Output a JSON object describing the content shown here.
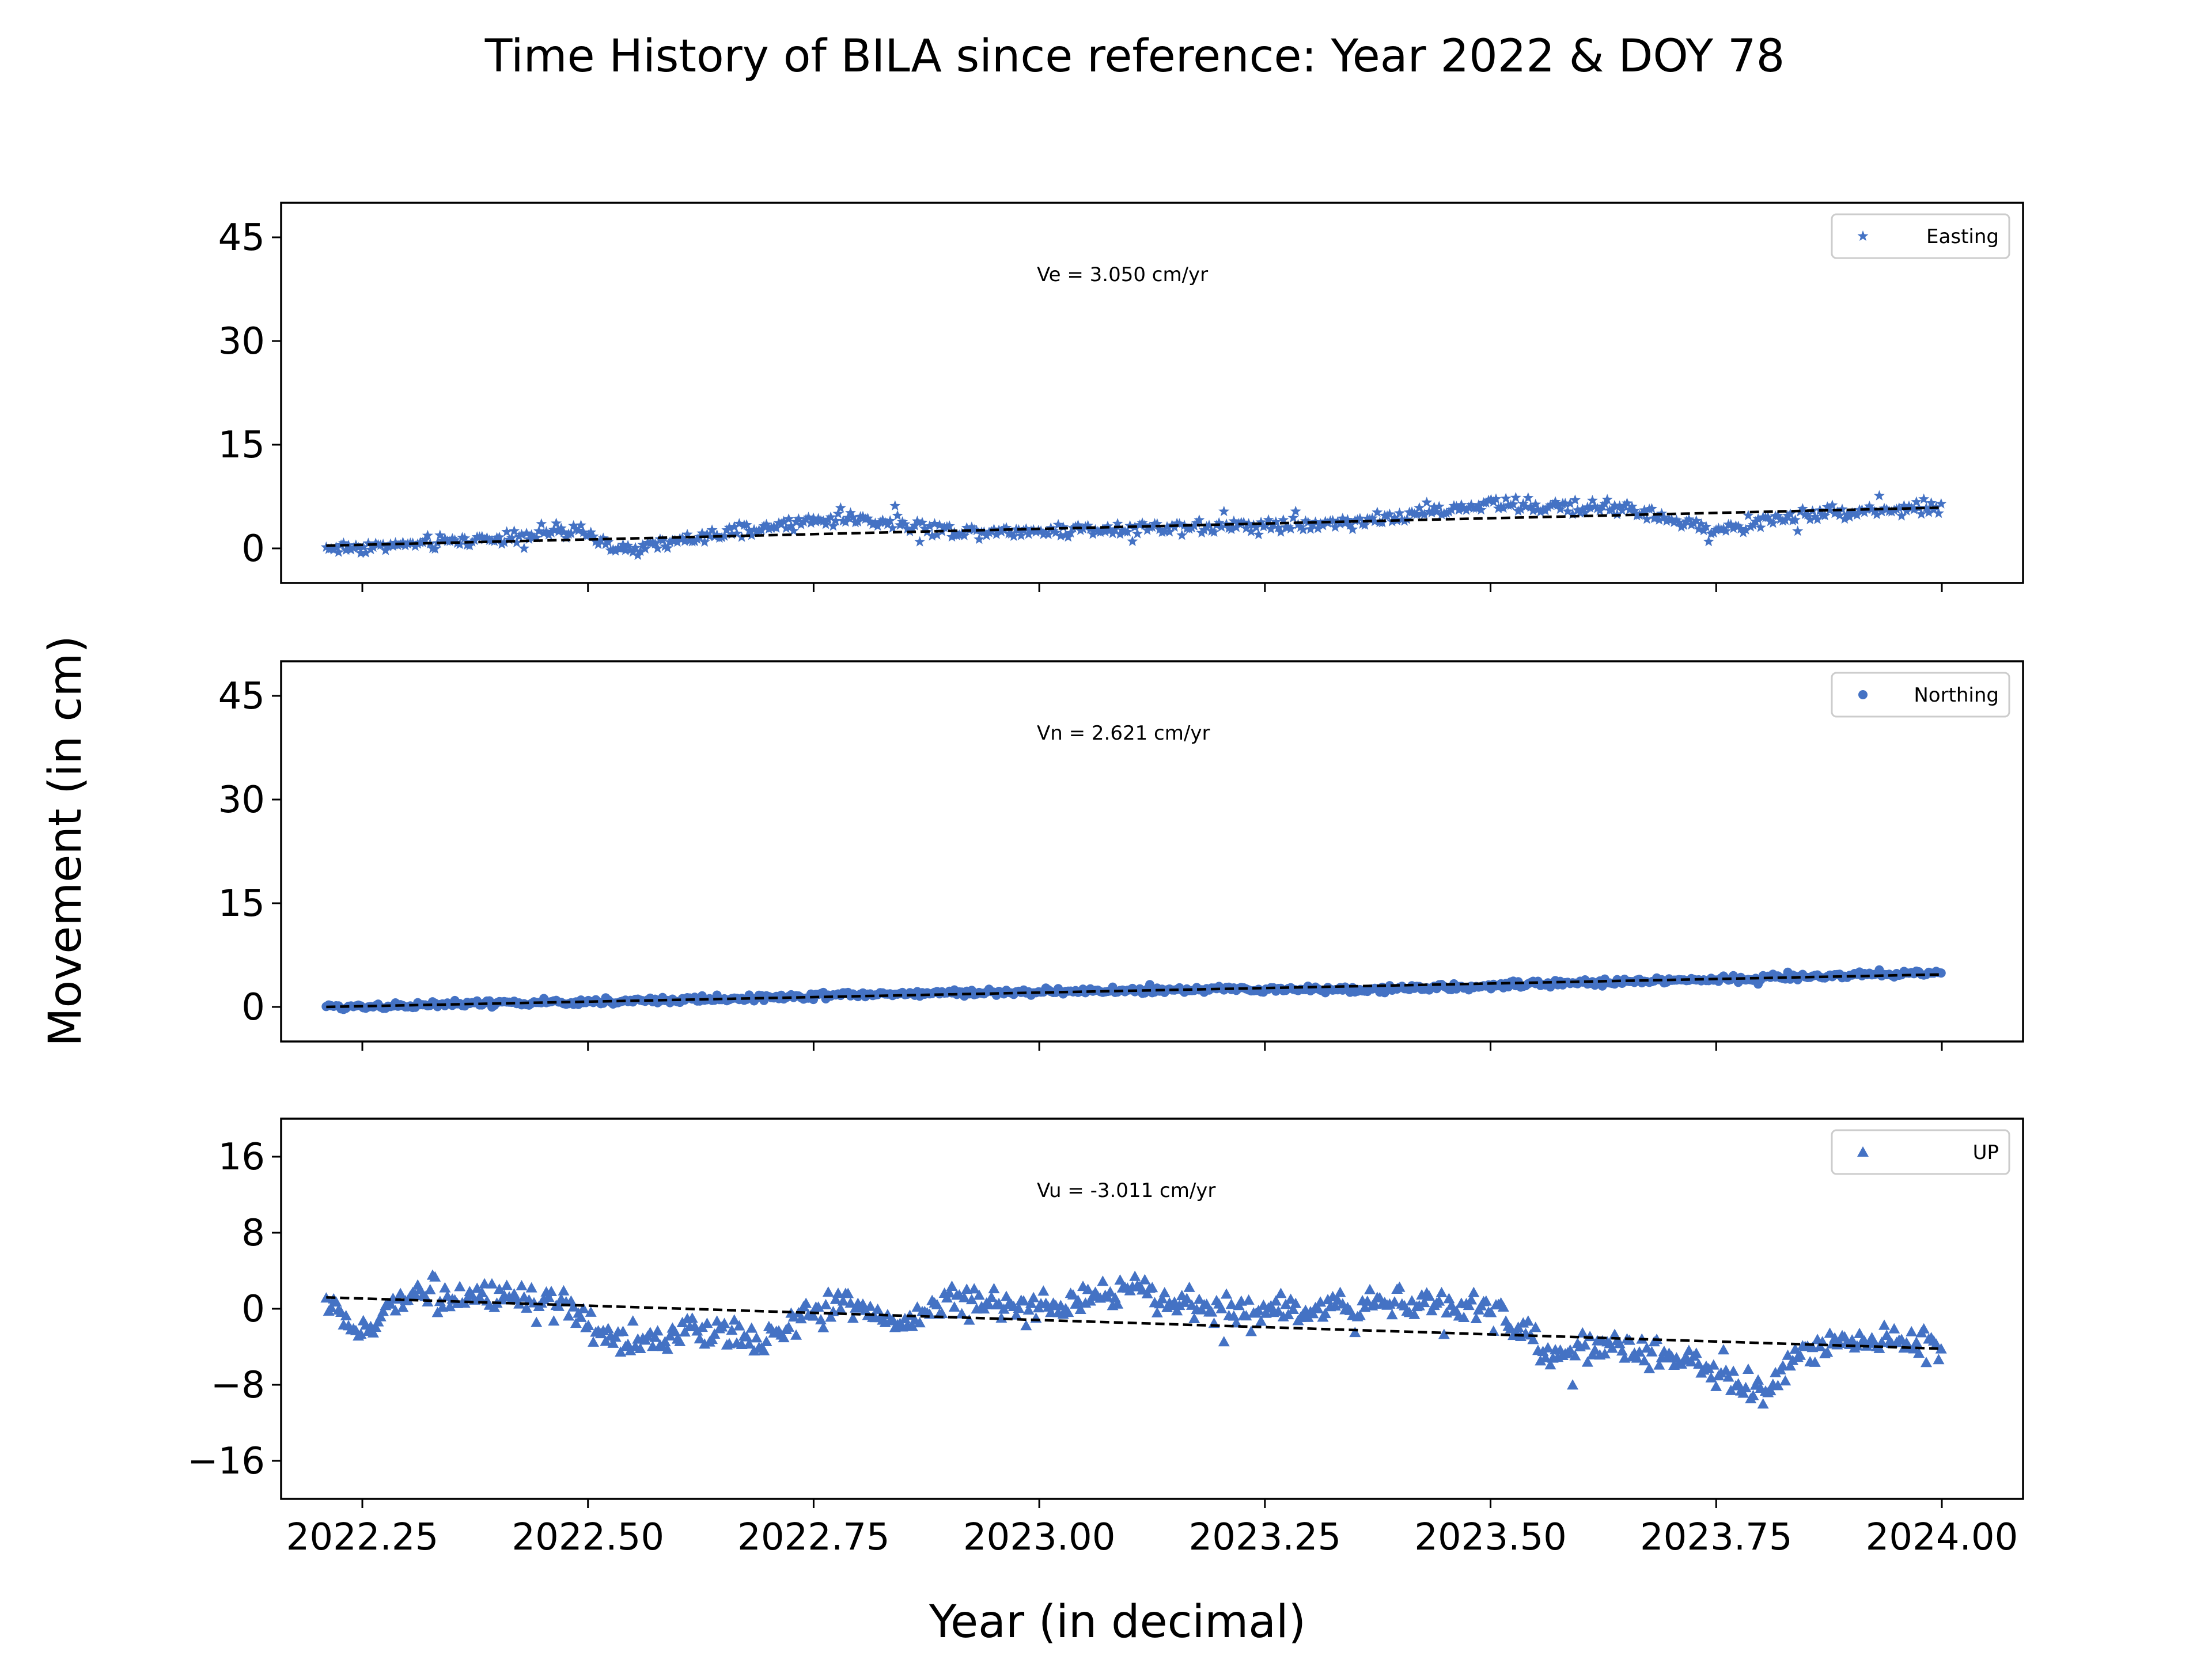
{
  "figure": {
    "title": "Time History of BILA since reference: Year 2022 & DOY 78",
    "xlabel": "Year (in decimal)",
    "ylabel": "Movement (in cm)"
  },
  "colors": {
    "marker": "#4472c4",
    "trend": "#000000",
    "axes": "#000000",
    "legend_border": "#cccccc"
  },
  "chart_data": [
    {
      "type": "scatter",
      "panel": "top",
      "series": [
        {
          "name": "Easting",
          "marker": "star"
        }
      ],
      "annotation": "Ve =  3.050 cm/yr",
      "rate_cm_per_yr": 3.05,
      "trend_line": {
        "x": [
          2022.21,
          2024.0
        ],
        "y": [
          0.4,
          5.9
        ]
      },
      "xlim": [
        2022.16,
        2024.09
      ],
      "ylim": [
        -5,
        50
      ],
      "yticks": [
        "0",
        "15",
        "30",
        "45"
      ],
      "xticks": [
        "2022.25",
        "2022.50",
        "2022.75",
        "2023.00",
        "2023.25",
        "2023.50",
        "2023.75",
        "2024.00"
      ],
      "show_xtick_labels": false,
      "legend_position": "top-right",
      "grid": false,
      "anchor_points": {
        "x": [
          2022.21,
          2022.3,
          2022.4,
          2022.46,
          2022.5,
          2022.54,
          2022.6,
          2022.7,
          2022.78,
          2022.85,
          2022.9,
          2023.0,
          2023.1,
          2023.2,
          2023.3,
          2023.4,
          2023.5,
          2023.55,
          2023.65,
          2023.7,
          2023.75,
          2023.85,
          2024.0
        ],
        "y": [
          0.0,
          0.5,
          1.5,
          2.5,
          2.0,
          -0.5,
          1.0,
          3.0,
          4.5,
          3.5,
          2.5,
          2.5,
          3.0,
          3.2,
          3.5,
          4.5,
          6.5,
          6.0,
          6.0,
          4.0,
          2.5,
          5.0,
          6.0
        ]
      }
    },
    {
      "type": "scatter",
      "panel": "middle",
      "series": [
        {
          "name": "Northing",
          "marker": "circle"
        }
      ],
      "annotation": "Vn =  2.621 cm/yr",
      "rate_cm_per_yr": 2.621,
      "trend_line": {
        "x": [
          2022.21,
          2024.0
        ],
        "y": [
          0.0,
          4.7
        ]
      },
      "xlim": [
        2022.16,
        2024.09
      ],
      "ylim": [
        -5,
        50
      ],
      "yticks": [
        "0",
        "15",
        "30",
        "45"
      ],
      "xticks": [
        "2022.25",
        "2022.50",
        "2022.75",
        "2023.00",
        "2023.25",
        "2023.50",
        "2023.75",
        "2024.00"
      ],
      "show_xtick_labels": false,
      "legend_position": "top-right",
      "grid": false,
      "anchor_points": {
        "x": [
          2022.21,
          2022.4,
          2022.6,
          2022.8,
          2023.0,
          2023.2,
          2023.4,
          2023.6,
          2023.8,
          2024.0
        ],
        "y": [
          0.0,
          0.5,
          1.0,
          1.8,
          2.2,
          2.5,
          2.6,
          3.5,
          4.2,
          5.0
        ]
      }
    },
    {
      "type": "scatter",
      "panel": "bottom",
      "series": [
        {
          "name": "UP",
          "marker": "triangle"
        }
      ],
      "annotation": "Vu = -3.011 cm/yr",
      "rate_cm_per_yr": -3.011,
      "trend_line": {
        "x": [
          2022.21,
          2024.0
        ],
        "y": [
          1.2,
          -4.2
        ]
      },
      "xlim": [
        2022.16,
        2024.09
      ],
      "ylim": [
        -20,
        20
      ],
      "yticks": [
        "16",
        "8",
        "0",
        "−8",
        "−16"
      ],
      "ytick_values": [
        16,
        8,
        0,
        -8,
        -16
      ],
      "xticks": [
        "2022.25",
        "2022.50",
        "2022.75",
        "2023.00",
        "2023.25",
        "2023.50",
        "2023.75",
        "2024.00"
      ],
      "show_xtick_labels": true,
      "legend_position": "top-right",
      "grid": false,
      "anchor_points": {
        "x": [
          2022.21,
          2022.25,
          2022.3,
          2022.4,
          2022.48,
          2022.54,
          2022.6,
          2022.7,
          2022.78,
          2022.85,
          2022.9,
          2023.0,
          2023.1,
          2023.2,
          2023.3,
          2023.4,
          2023.5,
          2023.57,
          2023.65,
          2023.7,
          2023.76,
          2023.8,
          2023.85,
          2023.9,
          2024.0
        ],
        "y": [
          1.0,
          -3.0,
          2.0,
          1.0,
          0.0,
          -4.0,
          -2.5,
          -3.0,
          1.0,
          -1.5,
          1.0,
          0.0,
          2.0,
          0.0,
          0.0,
          1.0,
          0.0,
          -5.0,
          -4.0,
          -5.0,
          -7.0,
          -9.0,
          -4.0,
          -3.0,
          -4.0
        ]
      }
    }
  ]
}
